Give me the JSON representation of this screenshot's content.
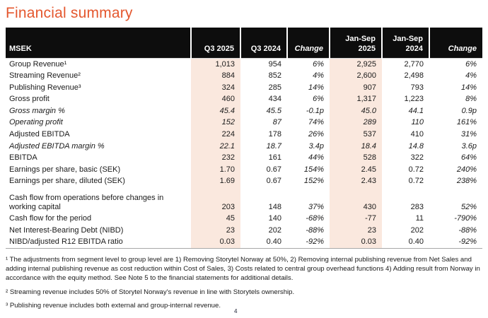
{
  "page_title": "Financial summary",
  "colors": {
    "accent_orange": "#e4572e",
    "header_bg": "#0d0d0d",
    "column_highlight": "#fae8de"
  },
  "table": {
    "columns": [
      {
        "label": "MSEK",
        "align": "left",
        "italic": false,
        "highlight": false
      },
      {
        "label": "Q3 2025",
        "align": "right",
        "italic": false,
        "highlight": true
      },
      {
        "label": "Q3 2024",
        "align": "right",
        "italic": false,
        "highlight": false
      },
      {
        "label": "Change",
        "align": "right",
        "italic": true,
        "highlight": false
      },
      {
        "label": "Jan-Sep 2025",
        "align": "right",
        "italic": false,
        "highlight": true
      },
      {
        "label": "Jan-Sep 2024",
        "align": "right",
        "italic": false,
        "highlight": false
      },
      {
        "label": "Change",
        "align": "right",
        "italic": true,
        "highlight": false
      }
    ],
    "rows": [
      {
        "label": "Group Revenue¹",
        "italic": false,
        "tall": false,
        "values": [
          "1,013",
          "954",
          "6%",
          "2,925",
          "2,770",
          "6%"
        ]
      },
      {
        "label": "Streaming Revenue²",
        "italic": false,
        "tall": false,
        "values": [
          "884",
          "852",
          "4%",
          "2,600",
          "2,498",
          "4%"
        ]
      },
      {
        "label": "Publishing Revenue³",
        "italic": false,
        "tall": false,
        "values": [
          "324",
          "285",
          "14%",
          "907",
          "793",
          "14%"
        ]
      },
      {
        "label": "Gross profit",
        "italic": false,
        "tall": false,
        "values": [
          "460",
          "434",
          "6%",
          "1,317",
          "1,223",
          "8%"
        ]
      },
      {
        "label": "Gross margin %",
        "italic": true,
        "tall": false,
        "values": [
          "45.4",
          "45.5",
          "-0.1p",
          "45.0",
          "44.1",
          "0.9p"
        ]
      },
      {
        "label": "Operating profit",
        "italic": true,
        "tall": false,
        "values": [
          "152",
          "87",
          "74%",
          "289",
          "110",
          "161%"
        ]
      },
      {
        "label": "Adjusted EBITDA",
        "italic": false,
        "tall": false,
        "values": [
          "224",
          "178",
          "26%",
          "537",
          "410",
          "31%"
        ]
      },
      {
        "label": "Adjusted EBITDA margin %",
        "italic": true,
        "tall": false,
        "values": [
          "22.1",
          "18.7",
          "3.4p",
          "18.4",
          "14.8",
          "3.6p"
        ]
      },
      {
        "label": "EBITDA",
        "italic": false,
        "tall": false,
        "values": [
          "232",
          "161",
          "44%",
          "528",
          "322",
          "64%"
        ]
      },
      {
        "label": "Earnings per share, basic (SEK)",
        "italic": false,
        "tall": false,
        "values": [
          "1.70",
          "0.67",
          "154%",
          "2.45",
          "0.72",
          "240%"
        ]
      },
      {
        "label": "Earnings per share, diluted (SEK)",
        "italic": false,
        "tall": false,
        "values": [
          "1.69",
          "0.67",
          "152%",
          "2.43",
          "0.72",
          "238%"
        ]
      },
      {
        "label": "Cash flow from operations before changes in working capital",
        "italic": false,
        "tall": true,
        "values": [
          "203",
          "148",
          "37%",
          "430",
          "283",
          "52%"
        ]
      },
      {
        "label": "Cash flow for the period",
        "italic": false,
        "tall": false,
        "values": [
          "45",
          "140",
          "-68%",
          "-77",
          "11",
          "-790%"
        ]
      },
      {
        "label": "Net Interest-Bearing Debt (NIBD)",
        "italic": false,
        "tall": false,
        "values": [
          "23",
          "202",
          "-88%",
          "23",
          "202",
          "-88%"
        ]
      },
      {
        "label": "NIBD/adjusted R12 EBITDA ratio",
        "italic": false,
        "tall": false,
        "values": [
          "0.03",
          "0.40",
          "-92%",
          "0.03",
          "0.40",
          "-92%"
        ]
      }
    ]
  },
  "footnotes": [
    "¹ The adjustments from segment level to group level are 1) Removing Storytel Norway at 50%, 2) Removing internal publishing revenue from Net Sales and adding internal publishing revenue as cost reduction within Cost of Sales, 3) Costs related to central group overhead functions 4) Adding result from Norway in accordance with the equity method. See Note 5 to the financial statements for additional details.",
    "² Streaming revenue includes 50% of Storytel Norway's revenue in line with Storytels ownership.",
    "³ Publishing revenue includes both external and group-internal revenue."
  ],
  "page_number": "4"
}
